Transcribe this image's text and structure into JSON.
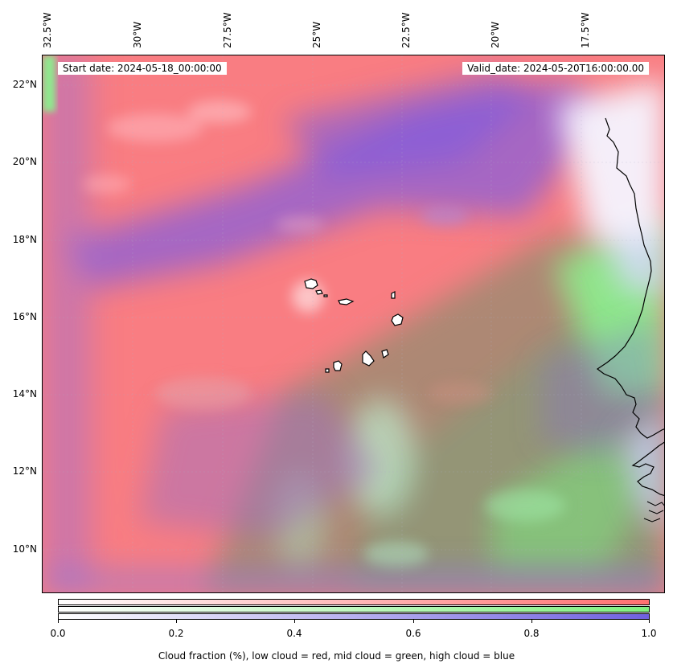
{
  "header": {
    "start_date": "Start date: 2024-05-18_00:00:00",
    "valid_date": "Valid_date: 2024-05-20T16:00:00.00"
  },
  "axes": {
    "lon_labels": [
      "32.5°W",
      "30°W",
      "27.5°W",
      "25°W",
      "22.5°W",
      "20°W",
      "17.5°W"
    ],
    "lat_labels": [
      "22°N",
      "20°N",
      "18°N",
      "16°N",
      "14°N",
      "12°N",
      "10°N"
    ]
  },
  "colorbar": {
    "ticks": [
      "0.0",
      "0.2",
      "0.4",
      "0.6",
      "0.8",
      "1.0"
    ],
    "title": "Cloud fraction (%), low cloud = red, mid cloud = green, high cloud = blue",
    "colors": {
      "low": "#ff7070",
      "mid": "#80f080",
      "high": "#7060e0"
    }
  },
  "map": {
    "extent_lon": [
      -32.5,
      -15.0
    ],
    "extent_lat": [
      8.8,
      22.8
    ],
    "features": [
      "coastline-africa",
      "cape-verde-islands"
    ]
  }
}
